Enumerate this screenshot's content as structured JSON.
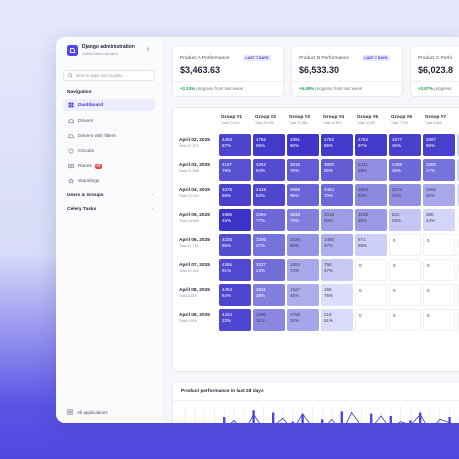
{
  "app": {
    "name": "Django administration",
    "subtitle": "Unfold demo project"
  },
  "search": {
    "placeholder": "Search apps and models..."
  },
  "navigation": {
    "title": "Navigation",
    "items": [
      {
        "label": "Dashboard",
        "icon": "dashboard-icon",
        "active": true
      },
      {
        "label": "Drivers",
        "icon": "car-icon"
      },
      {
        "label": "Drivers with filters",
        "icon": "filter-icon"
      },
      {
        "label": "Circuits",
        "icon": "circuit-icon"
      },
      {
        "label": "Races",
        "icon": "flag-icon",
        "badge": "+5"
      },
      {
        "label": "Standings",
        "icon": "star-icon"
      }
    ],
    "groups": [
      {
        "label": "Users & Groups"
      },
      {
        "label": "Celery Tasks"
      }
    ],
    "footer": "All applications"
  },
  "cards": [
    {
      "title": "Product A Performance",
      "tag": "LAST 7 DAYS",
      "value": "$3,463.63",
      "change": "+2.13%",
      "note": "progress from last week"
    },
    {
      "title": "Product B Performance",
      "tag": "LAST 7 DAYS",
      "value": "$6,533.30",
      "change": "+6.49%",
      "note": "progress from last week"
    },
    {
      "title": "Product C Perfo",
      "tag": "",
      "value": "$6,023.8",
      "change": "+2.87%",
      "note": "progress"
    }
  ],
  "table": {
    "groups": [
      {
        "name": "Group #1",
        "total": "Total 23,641"
      },
      {
        "name": "Group #2",
        "total": "Total 28,906"
      },
      {
        "name": "Group #3",
        "total": "Total 22,584"
      },
      {
        "name": "Group #4",
        "total": "Total 14,874"
      },
      {
        "name": "Group #5",
        "total": "Total 13,287"
      },
      {
        "name": "Group #6",
        "total": "Total 7,129"
      },
      {
        "name": "Group #7",
        "total": "Total 6,865"
      },
      {
        "name": "Grou",
        "total": "Total"
      }
    ],
    "rows": [
      {
        "date": "April 02, 2025",
        "total": "Total 21,974",
        "cells": [
          [
            "4493",
            "87%"
          ],
          [
            "4782",
            "86%"
          ],
          [
            "4891",
            "96%"
          ],
          [
            "4782",
            "86%"
          ],
          [
            "4764",
            "97%"
          ],
          [
            "4577",
            "26%"
          ],
          [
            "4597",
            "65%"
          ],
          [
            "443",
            "17%"
          ]
        ]
      },
      {
        "date": "April 03, 2025",
        "total": "Total 21,908",
        "cells": [
          [
            "4107",
            "78%"
          ],
          [
            "4252",
            "64%"
          ],
          [
            "3815",
            "76%"
          ],
          [
            "3800",
            "55%"
          ],
          [
            "2421",
            "58%"
          ],
          [
            "3458",
            "35%"
          ],
          [
            "3200",
            "17%"
          ],
          [
            "307",
            "55%"
          ]
        ]
      },
      {
        "date": "April 04, 2025",
        "total": "Total 20,140",
        "cells": [
          [
            "4575",
            "59%"
          ],
          [
            "4415",
            "53%"
          ],
          [
            "3588",
            "95%"
          ],
          [
            "3464",
            "70%"
          ],
          [
            "2520",
            "60%"
          ],
          [
            "2374",
            "40%"
          ],
          [
            "1692",
            "55%"
          ],
          [
            "153",
            "91%"
          ]
        ]
      },
      {
        "date": "April 05, 2025",
        "total": "Total 16,690",
        "cells": [
          [
            "4986",
            "45%"
          ],
          [
            "3494",
            "77%"
          ],
          [
            "2833",
            "70%"
          ],
          [
            "2016",
            "60%"
          ],
          [
            "2105",
            "58%"
          ],
          [
            "822",
            "53%"
          ],
          [
            "380",
            "24%"
          ],
          [
            "0",
            ""
          ]
        ]
      },
      {
        "date": "April 06, 2025",
        "total": "Total 11,776",
        "cells": [
          [
            "4225",
            "86%"
          ],
          [
            "3200",
            "27%"
          ],
          [
            "2229",
            "65%"
          ],
          [
            "1466",
            "47%"
          ],
          [
            "571",
            "55%"
          ],
          [
            "0",
            ""
          ],
          [
            "0",
            ""
          ],
          [
            "0",
            ""
          ]
        ]
      },
      {
        "date": "April 07, 2025",
        "total": "Total 10,905",
        "cells": [
          [
            "4365",
            "91%"
          ],
          [
            "3327",
            "43%"
          ],
          [
            "1653",
            "74%"
          ],
          [
            "760",
            "47%"
          ],
          [
            "0",
            ""
          ],
          [
            "0",
            ""
          ],
          [
            "0",
            ""
          ],
          [
            "0",
            ""
          ]
        ]
      },
      {
        "date": "April 08, 2025",
        "total": "Total 8,415",
        "cells": [
          [
            "4453",
            "84%"
          ],
          [
            "2831",
            "39%"
          ],
          [
            "1527",
            "45%"
          ],
          [
            "165",
            "75%"
          ],
          [
            "0",
            ""
          ],
          [
            "0",
            ""
          ],
          [
            "0",
            ""
          ],
          [
            "0",
            ""
          ]
        ]
      },
      {
        "date": "April 09, 2025",
        "total": "Total 9,906",
        "cells": [
          [
            "4434",
            "22%"
          ],
          [
            "2590",
            "11%"
          ],
          [
            "1766",
            "32%"
          ],
          [
            "219",
            "51%"
          ],
          [
            "0",
            ""
          ],
          [
            "0",
            ""
          ],
          [
            "0",
            ""
          ],
          [
            "0",
            ""
          ]
        ]
      }
    ]
  },
  "chart": {
    "title": "Product performance in last 28 days"
  },
  "chart_data": {
    "type": "bar",
    "title": "Product performance in last 28 days",
    "values": [
      14,
      8,
      10,
      12,
      22,
      9,
      16,
      28,
      12,
      26,
      8,
      18,
      24,
      11,
      20,
      7,
      27,
      15,
      10,
      25,
      13,
      23,
      9,
      19,
      26,
      12,
      17,
      22
    ],
    "line": [
      10,
      13,
      8,
      16,
      11,
      19,
      9,
      24,
      12,
      14,
      21,
      10,
      25,
      13,
      11,
      20,
      8,
      26,
      14,
      12,
      23,
      11,
      18,
      15,
      24,
      10,
      20,
      17
    ]
  },
  "colors": {
    "accent": "#4f46e5",
    "positive": "#16a34a",
    "badge": "#ef4444"
  }
}
